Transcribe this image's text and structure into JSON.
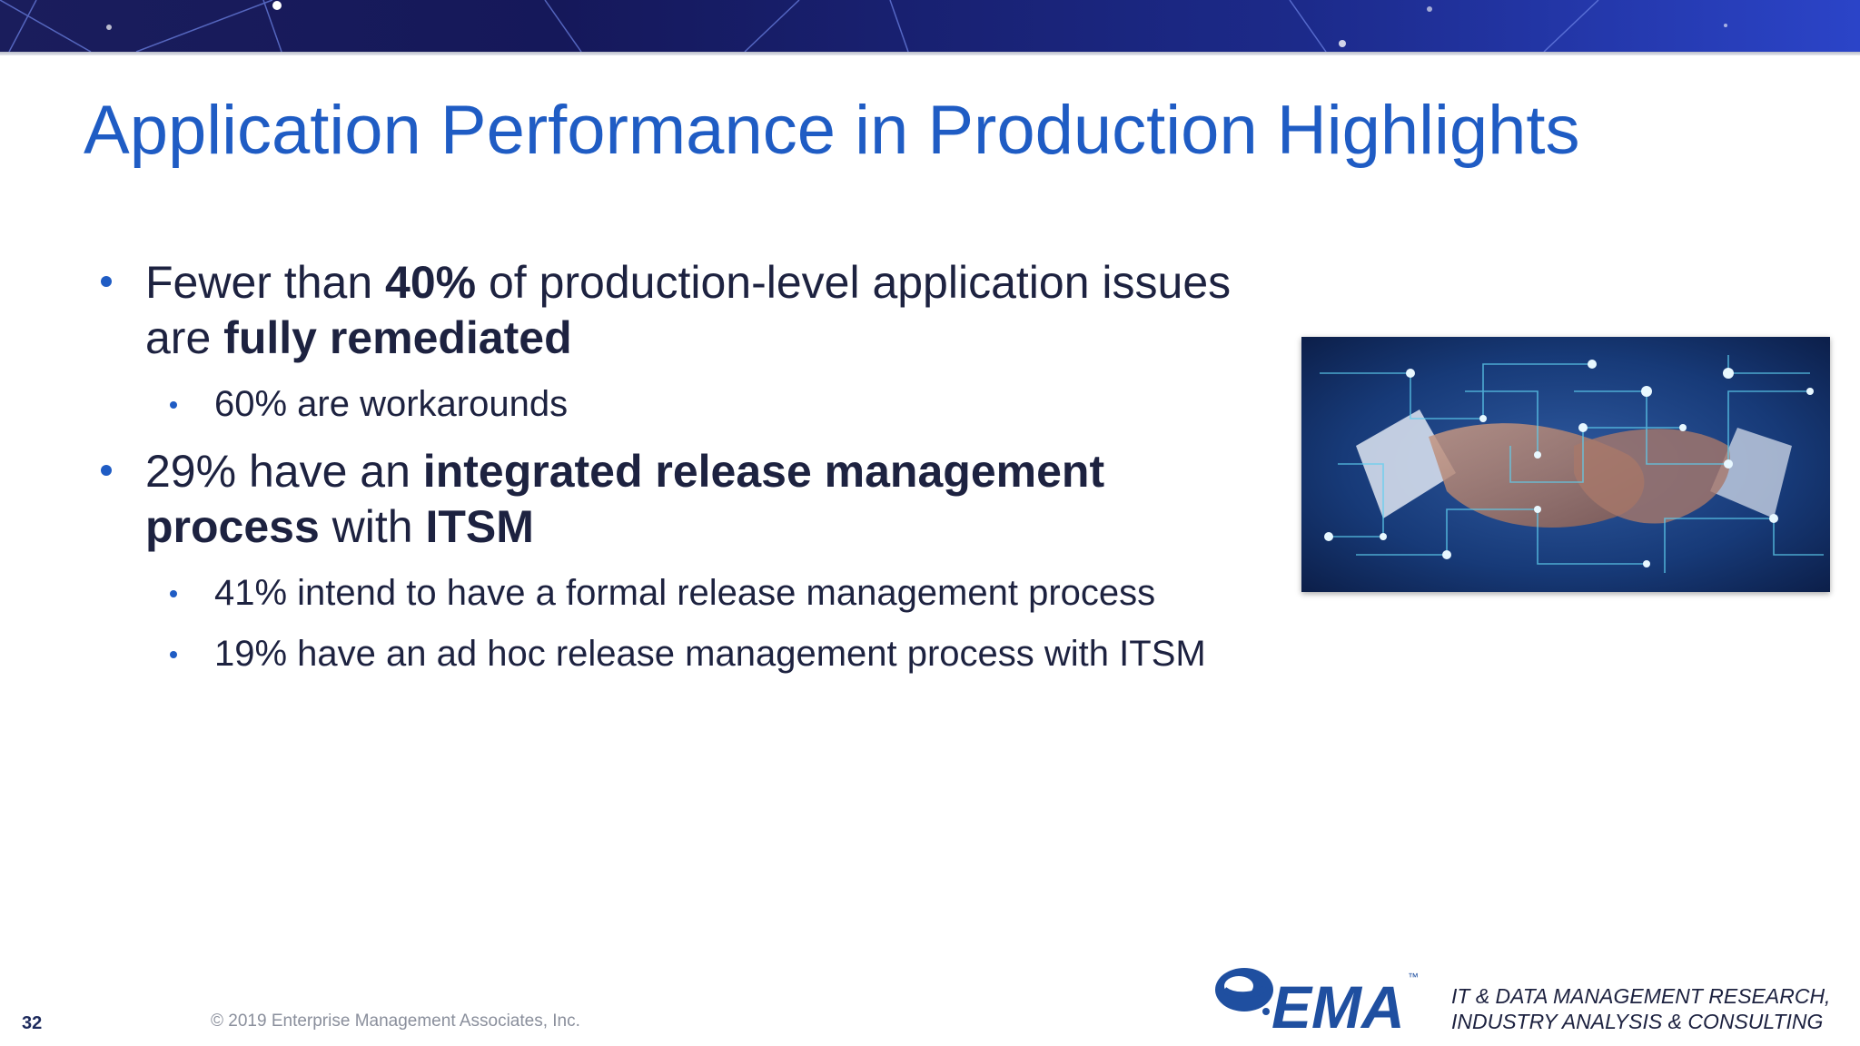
{
  "slide": {
    "title": "Application Performance in Production Highlights",
    "page_number": "32",
    "copyright": "© 2019 Enterprise Management Associates, Inc."
  },
  "bullets": {
    "b1_line1_pre": "Fewer than ",
    "b1_line1_bold": "40%",
    "b1_line1_post": " of production-level application issues",
    "b1_line2_pre": "are ",
    "b1_line2_bold": "fully remediated",
    "b1_sub1": "60% are workarounds",
    "b2_line1_pre": "29% have an ",
    "b2_line1_bold": "integrated release management",
    "b2_line2_bold1": "process",
    "b2_line2_mid": " with ",
    "b2_line2_bold2": "ITSM",
    "b2_sub1": "41% intend to have a formal release management process",
    "b2_sub2": "19% have an ad hoc release management process with ITSM"
  },
  "brand": {
    "logo_text": "EMA",
    "logo_tm": "™",
    "tagline_line1": "IT & DATA MANAGEMENT RESEARCH,",
    "tagline_line2": "INDUSTRY ANALYSIS & CONSULTING"
  },
  "colors": {
    "title": "#1f5cc4",
    "body_text": "#1d2240",
    "bullet": "#1f5cc4",
    "banner": "#1a1d5c"
  },
  "icons": {
    "photo": "handshake-network-image",
    "logo": "ema-logo"
  }
}
